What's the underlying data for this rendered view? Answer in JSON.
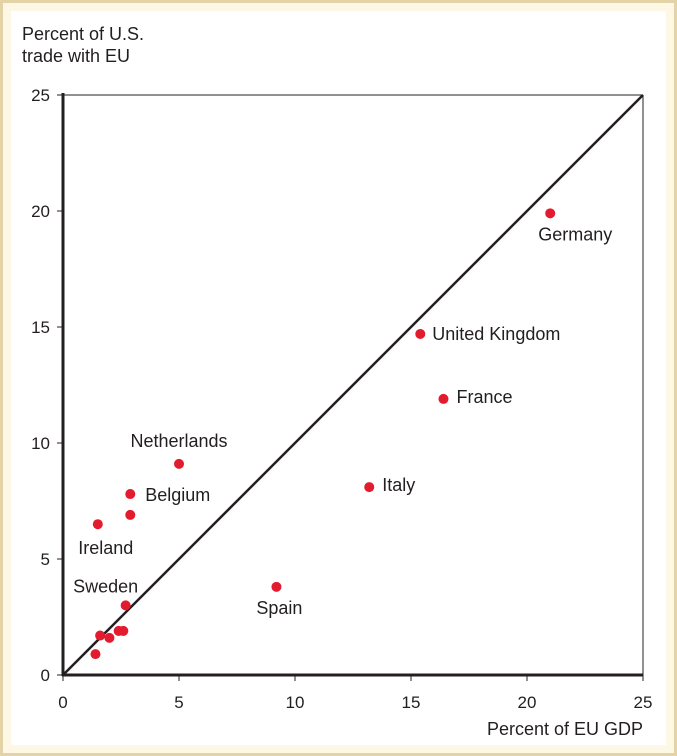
{
  "chart_data": {
    "type": "scatter",
    "title": "",
    "ylabel": [
      "Percent of U.S.",
      "trade with EU"
    ],
    "xlabel": "Percent of EU GDP",
    "xlim": [
      0,
      25
    ],
    "ylim": [
      0,
      25
    ],
    "xticks": [
      0,
      5,
      10,
      15,
      20,
      25
    ],
    "yticks": [
      0,
      5,
      10,
      15,
      20,
      25
    ],
    "reference_line": "45-degree line (y = x)",
    "grid": false,
    "marker_color": "#e31b2f",
    "axis_color": "#231f20",
    "points": [
      {
        "label": "Germany",
        "x": 21.0,
        "y": 19.9
      },
      {
        "label": "United Kingdom",
        "x": 15.4,
        "y": 14.7
      },
      {
        "label": "France",
        "x": 16.4,
        "y": 11.9
      },
      {
        "label": "Italy",
        "x": 13.2,
        "y": 8.1
      },
      {
        "label": "Netherlands",
        "x": 5.0,
        "y": 9.1
      },
      {
        "label": "Belgium",
        "x": 2.9,
        "y": 7.8
      },
      {
        "label": "",
        "x": 2.9,
        "y": 6.9
      },
      {
        "label": "Ireland",
        "x": 1.5,
        "y": 6.5
      },
      {
        "label": "Spain",
        "x": 9.2,
        "y": 3.8
      },
      {
        "label": "Sweden",
        "x": 2.7,
        "y": 3.0
      },
      {
        "label": "",
        "x": 2.4,
        "y": 1.9
      },
      {
        "label": "",
        "x": 2.6,
        "y": 1.9
      },
      {
        "label": "",
        "x": 1.6,
        "y": 1.7
      },
      {
        "label": "",
        "x": 2.0,
        "y": 1.6
      },
      {
        "label": "",
        "x": 1.4,
        "y": 0.9
      }
    ]
  }
}
